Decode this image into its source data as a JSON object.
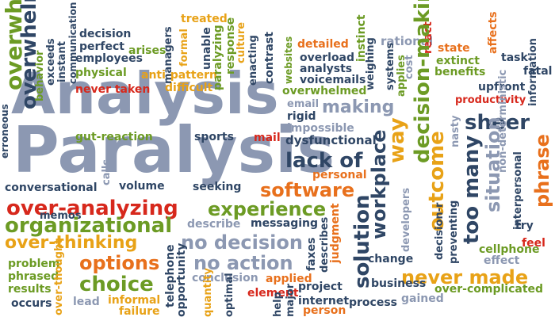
{
  "palette": {
    "slate": "#8c98b2",
    "navy": "#2f4665",
    "green": "#6c9b24",
    "orange": "#e8701c",
    "gold": "#e8a217",
    "red": "#d7281c"
  },
  "headline_words": [
    "Analysis",
    "Paralysis"
  ],
  "words": [
    {
      "id": "w00",
      "text": "Analysis",
      "color": "slate",
      "orient": "h"
    },
    {
      "id": "w01",
      "text": "Paralysis",
      "color": "slate",
      "orient": "h"
    },
    {
      "id": "w02",
      "text": "overwhelm",
      "color": "green",
      "orient": "v"
    },
    {
      "id": "w03",
      "text": "erroneous",
      "color": "navy",
      "orient": "v"
    },
    {
      "id": "w04",
      "text": "overwhelm",
      "color": "navy",
      "orient": "v"
    },
    {
      "id": "w05",
      "text": "behavior",
      "color": "green",
      "orient": "v"
    },
    {
      "id": "w06",
      "text": "exceeds",
      "color": "navy",
      "orient": "v"
    },
    {
      "id": "w07",
      "text": "instant",
      "color": "navy",
      "orient": "v"
    },
    {
      "id": "w08",
      "text": "communication",
      "color": "navy",
      "orient": "v"
    },
    {
      "id": "w09",
      "text": "decision",
      "color": "navy",
      "orient": "h"
    },
    {
      "id": "w10",
      "text": "perfect",
      "color": "navy",
      "orient": "h"
    },
    {
      "id": "w11",
      "text": "employees",
      "color": "navy",
      "orient": "h"
    },
    {
      "id": "w12",
      "text": "arises",
      "color": "green",
      "orient": "h"
    },
    {
      "id": "w13",
      "text": "physical",
      "color": "green",
      "orient": "h"
    },
    {
      "id": "w14",
      "text": "anti-pattern",
      "color": "gold",
      "orient": "h"
    },
    {
      "id": "w15",
      "text": "never taken",
      "color": "red",
      "orient": "h"
    },
    {
      "id": "w16",
      "text": "difficult",
      "color": "gold",
      "orient": "h"
    },
    {
      "id": "w17",
      "text": "managers",
      "color": "navy",
      "orient": "v"
    },
    {
      "id": "w18",
      "text": "formal",
      "color": "gold",
      "orient": "v"
    },
    {
      "id": "w19",
      "text": "treated",
      "color": "gold",
      "orient": "h"
    },
    {
      "id": "w20",
      "text": "unable",
      "color": "navy",
      "orient": "v"
    },
    {
      "id": "w21",
      "text": "paralyzing",
      "color": "green",
      "orient": "v"
    },
    {
      "id": "w22",
      "text": "response",
      "color": "green",
      "orient": "v"
    },
    {
      "id": "w23",
      "text": "culture",
      "color": "gold",
      "orient": "v"
    },
    {
      "id": "w24",
      "text": "enacting",
      "color": "navy",
      "orient": "v"
    },
    {
      "id": "w25",
      "text": "contrast",
      "color": "navy",
      "orient": "v"
    },
    {
      "id": "w26",
      "text": "websites",
      "color": "green",
      "orient": "v"
    },
    {
      "id": "w27",
      "text": "detailed",
      "color": "orange",
      "orient": "h"
    },
    {
      "id": "w28",
      "text": "instinct",
      "color": "green",
      "orient": "v"
    },
    {
      "id": "w29",
      "text": "overload",
      "color": "navy",
      "orient": "h"
    },
    {
      "id": "w30",
      "text": "analysts",
      "color": "navy",
      "orient": "h"
    },
    {
      "id": "w31",
      "text": "voicemails",
      "color": "navy",
      "orient": "h"
    },
    {
      "id": "w32",
      "text": "overwhelmed",
      "color": "green",
      "orient": "h"
    },
    {
      "id": "w33",
      "text": "weighing",
      "color": "navy",
      "orient": "v"
    },
    {
      "id": "w34",
      "text": "rational",
      "color": "slate",
      "orient": "h"
    },
    {
      "id": "w35",
      "text": "systems",
      "color": "navy",
      "orient": "v"
    },
    {
      "id": "w36",
      "text": "applies",
      "color": "green",
      "orient": "v"
    },
    {
      "id": "w37",
      "text": "cost",
      "color": "slate",
      "orient": "v"
    },
    {
      "id": "w38",
      "text": "react",
      "color": "red",
      "orient": "v"
    },
    {
      "id": "w39",
      "text": "state",
      "color": "orange",
      "orient": "h"
    },
    {
      "id": "w40",
      "text": "extinct",
      "color": "green",
      "orient": "h"
    },
    {
      "id": "w41",
      "text": "benefits",
      "color": "green",
      "orient": "h"
    },
    {
      "id": "w42",
      "text": "affects",
      "color": "orange",
      "orient": "v"
    },
    {
      "id": "w43",
      "text": "task",
      "color": "navy",
      "orient": "h"
    },
    {
      "id": "w44",
      "text": "fatal",
      "color": "navy",
      "orient": "h"
    },
    {
      "id": "w45",
      "text": "upfront",
      "color": "navy",
      "orient": "h"
    },
    {
      "id": "w46",
      "text": "productivity",
      "color": "red",
      "orient": "h"
    },
    {
      "id": "w47",
      "text": "information",
      "color": "navy",
      "orient": "v"
    },
    {
      "id": "w48",
      "text": "email",
      "color": "slate",
      "orient": "h"
    },
    {
      "id": "w49",
      "text": "making",
      "color": "slate",
      "orient": "h"
    },
    {
      "id": "w50",
      "text": "rigid",
      "color": "navy",
      "orient": "h"
    },
    {
      "id": "w51",
      "text": "impossible",
      "color": "slate",
      "orient": "h"
    },
    {
      "id": "w52",
      "text": "dysfunctional",
      "color": "navy",
      "orient": "h"
    },
    {
      "id": "w53",
      "text": "decision-making",
      "color": "green",
      "orient": "v"
    },
    {
      "id": "w54",
      "text": "sheer",
      "color": "navy",
      "orient": "h"
    },
    {
      "id": "w55",
      "text": "nasty",
      "color": "slate",
      "orient": "v"
    },
    {
      "id": "w56",
      "text": "non-deterministic",
      "color": "slate",
      "orient": "v"
    },
    {
      "id": "w57",
      "text": "interpersonal",
      "color": "navy",
      "orient": "v"
    },
    {
      "id": "w58",
      "text": "phrase",
      "color": "orange",
      "orient": "v"
    },
    {
      "id": "w59",
      "text": "gut-reaction",
      "color": "green",
      "orient": "h"
    },
    {
      "id": "w60",
      "text": "sports",
      "color": "navy",
      "orient": "h"
    },
    {
      "id": "w61",
      "text": "mail",
      "color": "red",
      "orient": "h"
    },
    {
      "id": "w62",
      "text": "lack of",
      "color": "navy",
      "orient": "h"
    },
    {
      "id": "w63",
      "text": "way",
      "color": "gold",
      "orient": "v"
    },
    {
      "id": "w64",
      "text": "workplace",
      "color": "navy",
      "orient": "v"
    },
    {
      "id": "w65",
      "text": "outcome",
      "color": "gold",
      "orient": "v"
    },
    {
      "id": "w66",
      "text": "situation",
      "color": "slate",
      "orient": "v"
    },
    {
      "id": "w67",
      "text": "too many",
      "color": "navy",
      "orient": "v"
    },
    {
      "id": "w68",
      "text": "calls",
      "color": "slate",
      "orient": "v"
    },
    {
      "id": "w69",
      "text": "conversational",
      "color": "navy",
      "orient": "h"
    },
    {
      "id": "w70",
      "text": "volume",
      "color": "navy",
      "orient": "h"
    },
    {
      "id": "w71",
      "text": "seeking",
      "color": "navy",
      "orient": "h"
    },
    {
      "id": "w72",
      "text": "personal",
      "color": "orange",
      "orient": "h"
    },
    {
      "id": "w73",
      "text": "software",
      "color": "orange",
      "orient": "h"
    },
    {
      "id": "w74",
      "text": "over-analyzing",
      "color": "red",
      "orient": "h"
    },
    {
      "id": "w75",
      "text": "experience",
      "color": "green",
      "orient": "h"
    },
    {
      "id": "w76",
      "text": "memos",
      "color": "navy",
      "orient": "h"
    },
    {
      "id": "w77",
      "text": "organizational",
      "color": "green",
      "orient": "h"
    },
    {
      "id": "w78",
      "text": "describe",
      "color": "slate",
      "orient": "h"
    },
    {
      "id": "w79",
      "text": "messaging",
      "color": "navy",
      "orient": "h"
    },
    {
      "id": "w80",
      "text": "solution",
      "color": "navy",
      "orient": "v"
    },
    {
      "id": "w81",
      "text": "developers",
      "color": "slate",
      "orient": "v"
    },
    {
      "id": "w82",
      "text": "decision-r",
      "color": "navy",
      "orient": "v"
    },
    {
      "id": "w83",
      "text": "preventing",
      "color": "navy",
      "orient": "v"
    },
    {
      "id": "w84",
      "text": "try",
      "color": "navy",
      "orient": "h"
    },
    {
      "id": "w85",
      "text": "feel",
      "color": "red",
      "orient": "h"
    },
    {
      "id": "w86",
      "text": "cellphone",
      "color": "green",
      "orient": "h"
    },
    {
      "id": "w87",
      "text": "over-thinking",
      "color": "gold",
      "orient": "h"
    },
    {
      "id": "w88",
      "text": "no decision",
      "color": "slate",
      "orient": "h"
    },
    {
      "id": "w89",
      "text": "faxes",
      "color": "navy",
      "orient": "v"
    },
    {
      "id": "w90",
      "text": "describes",
      "color": "navy",
      "orient": "v"
    },
    {
      "id": "w91",
      "text": "judgment",
      "color": "orange",
      "orient": "v"
    },
    {
      "id": "w92",
      "text": "change",
      "color": "navy",
      "orient": "h"
    },
    {
      "id": "w93",
      "text": "effect",
      "color": "slate",
      "orient": "h"
    },
    {
      "id": "w94",
      "text": "problem",
      "color": "green",
      "orient": "h"
    },
    {
      "id": "w95",
      "text": "phrased",
      "color": "green",
      "orient": "h"
    },
    {
      "id": "w96",
      "text": "options",
      "color": "orange",
      "orient": "h"
    },
    {
      "id": "w97",
      "text": "no action",
      "color": "slate",
      "orient": "h"
    },
    {
      "id": "w98",
      "text": "never made",
      "color": "gold",
      "orient": "h"
    },
    {
      "id": "w99",
      "text": "results",
      "color": "green",
      "orient": "h"
    },
    {
      "id": "w100",
      "text": "over-thought",
      "color": "gold",
      "orient": "v"
    },
    {
      "id": "w101",
      "text": "choice",
      "color": "green",
      "orient": "h"
    },
    {
      "id": "w102",
      "text": "telephone",
      "color": "navy",
      "orient": "v"
    },
    {
      "id": "w103",
      "text": "conclusion",
      "color": "slate",
      "orient": "h"
    },
    {
      "id": "w104",
      "text": "applied",
      "color": "orange",
      "orient": "h"
    },
    {
      "id": "w105",
      "text": "project",
      "color": "navy",
      "orient": "h"
    },
    {
      "id": "w106",
      "text": "business",
      "color": "navy",
      "orient": "h"
    },
    {
      "id": "w107",
      "text": "over-complicated",
      "color": "green",
      "orient": "h"
    },
    {
      "id": "w108",
      "text": "occurs",
      "color": "navy",
      "orient": "h"
    },
    {
      "id": "w109",
      "text": "lead",
      "color": "slate",
      "orient": "h"
    },
    {
      "id": "w110",
      "text": "informal",
      "color": "gold",
      "orient": "h"
    },
    {
      "id": "w111",
      "text": "opportunity",
      "color": "navy",
      "orient": "v"
    },
    {
      "id": "w112",
      "text": "quantity",
      "color": "gold",
      "orient": "v"
    },
    {
      "id": "w113",
      "text": "optimal",
      "color": "navy",
      "orient": "v"
    },
    {
      "id": "w114",
      "text": "element",
      "color": "red",
      "orient": "h"
    },
    {
      "id": "w115",
      "text": "internet",
      "color": "navy",
      "orient": "h"
    },
    {
      "id": "w116",
      "text": "process",
      "color": "navy",
      "orient": "h"
    },
    {
      "id": "w117",
      "text": "gained",
      "color": "slate",
      "orient": "h"
    },
    {
      "id": "w118",
      "text": "failure",
      "color": "gold",
      "orient": "h"
    },
    {
      "id": "w119",
      "text": "help",
      "color": "navy",
      "orient": "v"
    },
    {
      "id": "w120",
      "text": "major",
      "color": "navy",
      "orient": "v"
    },
    {
      "id": "w121",
      "text": "person",
      "color": "orange",
      "orient": "h"
    }
  ]
}
